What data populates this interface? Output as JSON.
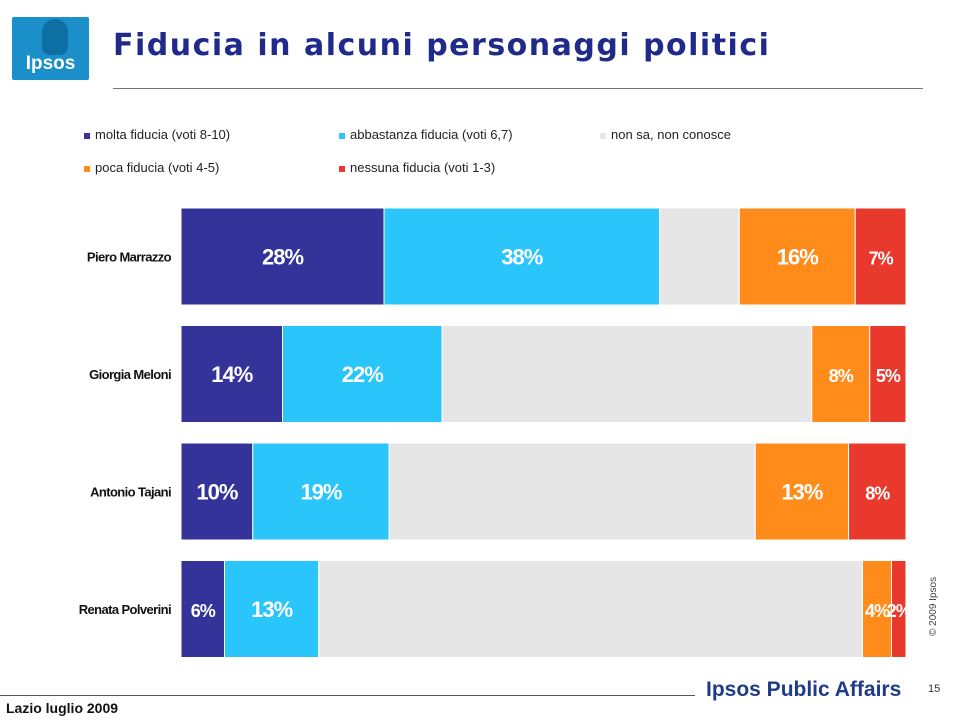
{
  "logo": {
    "text": "Ipsos"
  },
  "header": {
    "title": "Fiducia in alcuni personaggi politici"
  },
  "legend": [
    {
      "label": "molta fiducia (voti 8-10)",
      "color": "#333399"
    },
    {
      "label": "abbastanza fiducia (voti 6,7)",
      "color": "#29c5fb"
    },
    {
      "label": "non sa, non conosce",
      "color": "#e6e6e6"
    },
    {
      "label": "poca fiducia (voti 4-5)",
      "color": "#ff8c1a"
    },
    {
      "label": "nessuna fiducia (voti 1-3)",
      "color": "#e8392c"
    }
  ],
  "chart_data": {
    "type": "bar",
    "orientation": "horizontal",
    "stacked": true,
    "categories": [
      "Piero Marrazzo",
      "Giorgia Meloni",
      "Antonio Tajani",
      "Renata Polverini"
    ],
    "series": [
      {
        "name": "molta fiducia (voti 8-10)",
        "values": [
          28,
          14,
          10,
          6
        ],
        "labels": [
          "28%",
          "14%",
          "10%",
          "6%"
        ]
      },
      {
        "name": "abbastanza fiducia (voti 6,7)",
        "values": [
          38,
          22,
          19,
          13
        ],
        "labels": [
          "38%",
          "22%",
          "19%",
          "13%"
        ]
      },
      {
        "name": "non sa, non conosce",
        "values": [
          11,
          51,
          51,
          75
        ],
        "labels": [
          "",
          "",
          "",
          ""
        ]
      },
      {
        "name": "poca fiducia (voti 4-5)",
        "values": [
          16,
          8,
          13,
          4
        ],
        "labels": [
          "16%",
          "8%",
          "13%",
          "4%"
        ]
      },
      {
        "name": "nessuna fiducia (voti 1-3)",
        "values": [
          7,
          5,
          8,
          2
        ],
        "labels": [
          "7%",
          "5%",
          "8%",
          "2%"
        ]
      }
    ],
    "xlim": [
      0,
      100
    ],
    "grid": false,
    "legend_position": "top"
  },
  "copyright": "© 2009 Ipsos",
  "footer": {
    "left": "Lazio luglio 2009",
    "brand": "Ipsos Public Affairs",
    "page": "15"
  }
}
